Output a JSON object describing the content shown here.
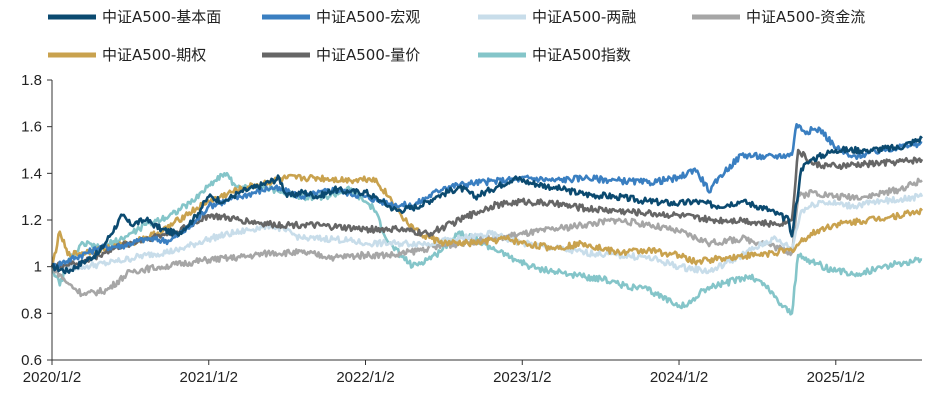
{
  "chart_data": {
    "type": "line",
    "title": "",
    "xlabel": "",
    "ylabel": "",
    "ylim": [
      0.6,
      1.8
    ],
    "yticks": [
      "0.6",
      "0.8",
      "1",
      "1.2",
      "1.4",
      "1.6",
      "1.8"
    ],
    "yvalues": [
      0.6,
      0.8,
      1.0,
      1.2,
      1.4,
      1.6,
      1.8
    ],
    "xlim": [
      2020.0,
      2025.55
    ],
    "xticks": [
      "2020/1/2",
      "2021/1/2",
      "2022/1/2",
      "2023/1/2",
      "2024/1/2",
      "2025/1/2"
    ],
    "xtick_values": [
      2020,
      2021,
      2022,
      2023,
      2024,
      2025
    ],
    "grid": false,
    "legend_position": "top",
    "series": [
      {
        "name": "中证A500-基本面",
        "color": "#0b4a70",
        "x": [
          2020.0,
          2020.1,
          2020.2,
          2020.3,
          2020.45,
          2020.5,
          2020.6,
          2020.7,
          2020.8,
          2020.9,
          2021.0,
          2021.1,
          2021.2,
          2021.3,
          2021.45,
          2021.5,
          2021.6,
          2021.7,
          2021.8,
          2021.9,
          2022.0,
          2022.1,
          2022.2,
          2022.35,
          2022.45,
          2022.6,
          2022.7,
          2022.8,
          2022.95,
          2023.05,
          2023.2,
          2023.4,
          2023.6,
          2023.8,
          2024.0,
          2024.1,
          2024.25,
          2024.4,
          2024.55,
          2024.7,
          2024.72,
          2024.78,
          2024.85,
          2025.0,
          2025.2,
          2025.4,
          2025.55
        ],
        "y": [
          1.0,
          0.98,
          1.02,
          1.06,
          1.22,
          1.18,
          1.2,
          1.16,
          1.14,
          1.2,
          1.3,
          1.28,
          1.32,
          1.34,
          1.38,
          1.3,
          1.32,
          1.3,
          1.33,
          1.32,
          1.32,
          1.28,
          1.24,
          1.26,
          1.3,
          1.34,
          1.3,
          1.33,
          1.38,
          1.36,
          1.34,
          1.31,
          1.3,
          1.28,
          1.27,
          1.28,
          1.26,
          1.28,
          1.25,
          1.2,
          1.13,
          1.42,
          1.46,
          1.5,
          1.5,
          1.51,
          1.55
        ]
      },
      {
        "name": "中证A500-宏观",
        "color": "#3a7fc1",
        "x": [
          2020.0,
          2020.15,
          2020.3,
          2020.45,
          2020.6,
          2020.75,
          2020.9,
          2021.0,
          2021.2,
          2021.4,
          2021.6,
          2021.8,
          2022.0,
          2022.15,
          2022.3,
          2022.5,
          2022.7,
          2022.9,
          2023.05,
          2023.2,
          2023.4,
          2023.6,
          2023.8,
          2024.0,
          2024.1,
          2024.2,
          2024.25,
          2024.4,
          2024.55,
          2024.72,
          2024.75,
          2024.8,
          2024.9,
          2025.0,
          2025.1,
          2025.3,
          2025.55
        ],
        "y": [
          1.0,
          1.04,
          1.08,
          1.09,
          1.12,
          1.11,
          1.18,
          1.26,
          1.3,
          1.34,
          1.3,
          1.33,
          1.3,
          1.27,
          1.26,
          1.34,
          1.36,
          1.37,
          1.38,
          1.37,
          1.38,
          1.37,
          1.36,
          1.38,
          1.42,
          1.32,
          1.38,
          1.48,
          1.47,
          1.48,
          1.61,
          1.58,
          1.59,
          1.51,
          1.47,
          1.5,
          1.53
        ]
      },
      {
        "name": "中证A500-两融",
        "color": "#c8ddea",
        "x": [
          2020.0,
          2020.2,
          2020.4,
          2020.6,
          2020.8,
          2021.0,
          2021.2,
          2021.4,
          2021.6,
          2021.8,
          2022.0,
          2022.2,
          2022.4,
          2022.6,
          2022.8,
          2023.0,
          2023.2,
          2023.4,
          2023.6,
          2023.8,
          2024.0,
          2024.2,
          2024.4,
          2024.6,
          2024.72,
          2024.78,
          2024.9,
          2025.1,
          2025.3,
          2025.55
        ],
        "y": [
          1.0,
          1.0,
          1.02,
          1.05,
          1.07,
          1.12,
          1.15,
          1.18,
          1.12,
          1.12,
          1.1,
          1.1,
          1.1,
          1.12,
          1.14,
          1.1,
          1.08,
          1.06,
          1.05,
          1.04,
          1.0,
          0.98,
          1.05,
          1.12,
          1.08,
          1.24,
          1.28,
          1.26,
          1.28,
          1.3
        ]
      },
      {
        "name": "中证A500-资金流",
        "color": "#a6a6a6",
        "x": [
          2020.0,
          2020.1,
          2020.2,
          2020.35,
          2020.5,
          2020.7,
          2020.9,
          2021.0,
          2021.2,
          2021.4,
          2021.6,
          2021.8,
          2022.0,
          2022.2,
          2022.4,
          2022.6,
          2022.8,
          2023.0,
          2023.2,
          2023.4,
          2023.6,
          2023.8,
          2024.0,
          2024.2,
          2024.4,
          2024.55,
          2024.72,
          2024.76,
          2024.85,
          2025.0,
          2025.2,
          2025.4,
          2025.55
        ],
        "y": [
          1.0,
          0.93,
          0.88,
          0.9,
          0.98,
          1.0,
          1.02,
          1.03,
          1.04,
          1.06,
          1.06,
          1.04,
          1.05,
          1.05,
          1.08,
          1.1,
          1.12,
          1.14,
          1.16,
          1.18,
          1.2,
          1.18,
          1.15,
          1.1,
          1.12,
          1.1,
          1.06,
          1.3,
          1.32,
          1.3,
          1.3,
          1.33,
          1.37
        ]
      },
      {
        "name": "中证A500-期权",
        "color": "#c9a24e",
        "x": [
          2020.0,
          2020.05,
          2020.1,
          2020.2,
          2020.35,
          2020.5,
          2020.7,
          2020.85,
          2021.0,
          2021.15,
          2021.3,
          2021.5,
          2021.7,
          2021.9,
          2022.05,
          2022.15,
          2022.25,
          2022.35,
          2022.5,
          2022.7,
          2022.9,
          2023.0,
          2023.2,
          2023.4,
          2023.6,
          2023.8,
          2024.0,
          2024.1,
          2024.3,
          2024.5,
          2024.6,
          2024.72,
          2024.8,
          2024.9,
          2025.0,
          2025.2,
          2025.4,
          2025.55
        ],
        "y": [
          1.0,
          1.15,
          1.05,
          1.06,
          1.08,
          1.1,
          1.15,
          1.22,
          1.28,
          1.32,
          1.35,
          1.38,
          1.38,
          1.37,
          1.38,
          1.3,
          1.2,
          1.14,
          1.1,
          1.1,
          1.12,
          1.1,
          1.08,
          1.1,
          1.06,
          1.07,
          1.05,
          1.02,
          1.04,
          1.05,
          1.06,
          1.07,
          1.12,
          1.16,
          1.18,
          1.2,
          1.22,
          1.24
        ]
      },
      {
        "name": "中证A500-量价",
        "color": "#666666",
        "x": [
          2020.0,
          2020.2,
          2020.4,
          2020.6,
          2020.8,
          2021.0,
          2021.2,
          2021.4,
          2021.6,
          2021.8,
          2022.0,
          2022.2,
          2022.4,
          2022.6,
          2022.8,
          2023.0,
          2023.2,
          2023.4,
          2023.6,
          2023.8,
          2024.0,
          2024.2,
          2024.4,
          2024.6,
          2024.72,
          2024.76,
          2024.85,
          2025.0,
          2025.2,
          2025.4,
          2025.55
        ],
        "y": [
          1.0,
          1.02,
          1.08,
          1.12,
          1.15,
          1.22,
          1.2,
          1.18,
          1.18,
          1.17,
          1.16,
          1.16,
          1.14,
          1.2,
          1.26,
          1.28,
          1.27,
          1.25,
          1.24,
          1.23,
          1.22,
          1.2,
          1.2,
          1.18,
          1.2,
          1.5,
          1.44,
          1.43,
          1.44,
          1.45,
          1.46
        ]
      },
      {
        "name": "中证A500指数",
        "color": "#84c5c9",
        "x": [
          2020.0,
          2020.05,
          2020.1,
          2020.2,
          2020.3,
          2020.45,
          2020.6,
          2020.75,
          2020.9,
          2021.0,
          2021.1,
          2021.2,
          2021.3,
          2021.45,
          2021.6,
          2021.75,
          2021.9,
          2022.05,
          2022.15,
          2022.3,
          2022.45,
          2022.6,
          2022.75,
          2022.9,
          2023.05,
          2023.2,
          2023.35,
          2023.5,
          2023.65,
          2023.8,
          2023.95,
          2024.05,
          2024.15,
          2024.3,
          2024.45,
          2024.55,
          2024.65,
          2024.72,
          2024.76,
          2024.85,
          2025.0,
          2025.15,
          2025.3,
          2025.45,
          2025.55
        ],
        "y": [
          1.0,
          0.92,
          1.02,
          1.1,
          1.08,
          1.12,
          1.18,
          1.22,
          1.28,
          1.35,
          1.4,
          1.33,
          1.35,
          1.32,
          1.3,
          1.3,
          1.33,
          1.25,
          1.1,
          1.0,
          1.05,
          1.15,
          1.1,
          1.05,
          1.0,
          0.98,
          0.96,
          0.95,
          0.92,
          0.9,
          0.85,
          0.83,
          0.9,
          0.93,
          0.96,
          0.92,
          0.84,
          0.8,
          1.05,
          1.02,
          0.98,
          0.97,
          1.0,
          1.02,
          1.03
        ]
      }
    ]
  }
}
